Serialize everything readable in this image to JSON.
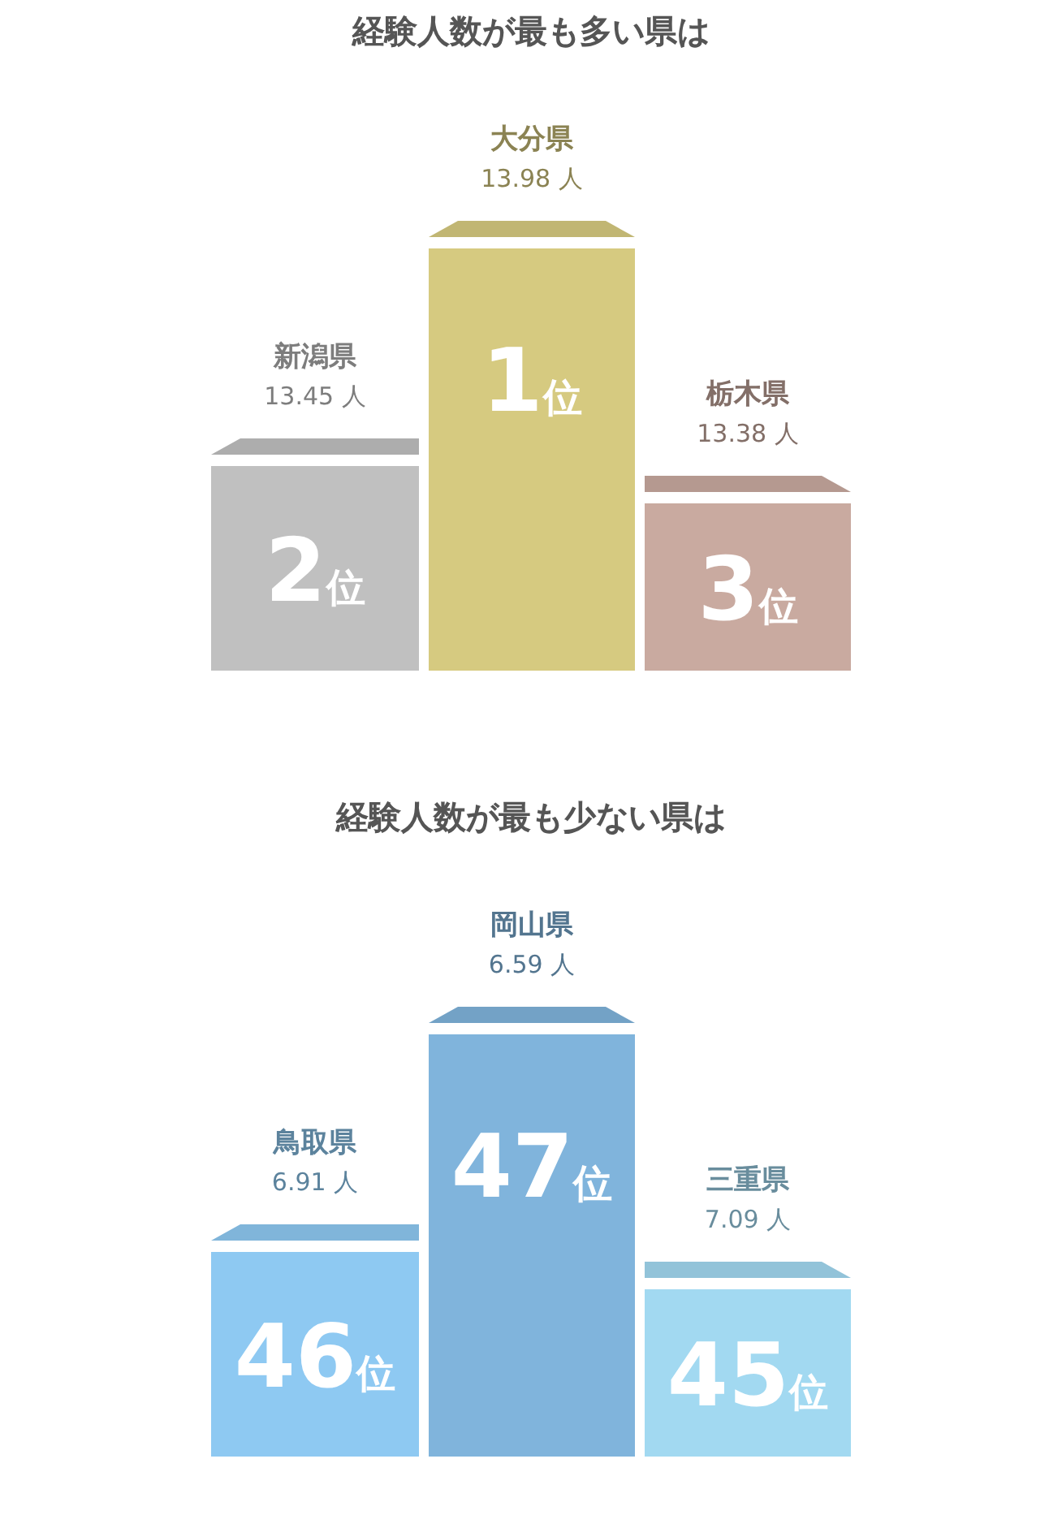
{
  "chart_data": [
    {
      "type": "other",
      "title": "経験人数が最も多い県は",
      "categories": [
        "新潟県",
        "大分県",
        "栃木県"
      ],
      "values": [
        13.45,
        13.98,
        13.38
      ],
      "value_labels": [
        "13.45 人",
        "13.98 人",
        "13.38 人"
      ],
      "colors": [
        "#c0c0c0",
        "#d6ca80",
        "#c9aaa0"
      ],
      "annotations": [
        "2位",
        "1位",
        "3位"
      ]
    },
    {
      "type": "other",
      "title": "経験人数が最も少ない県は",
      "categories": [
        "鳥取県",
        "岡山県",
        "三重県"
      ],
      "values": [
        6.91,
        6.59,
        7.09
      ],
      "value_labels": [
        "6.91 人",
        "6.59 人",
        "7.09 人"
      ],
      "colors": [
        "#8ec9f2",
        "#80b4dc",
        "#a2d9f1"
      ],
      "annotations": [
        "46位",
        "47位",
        "45位"
      ]
    }
  ]
}
